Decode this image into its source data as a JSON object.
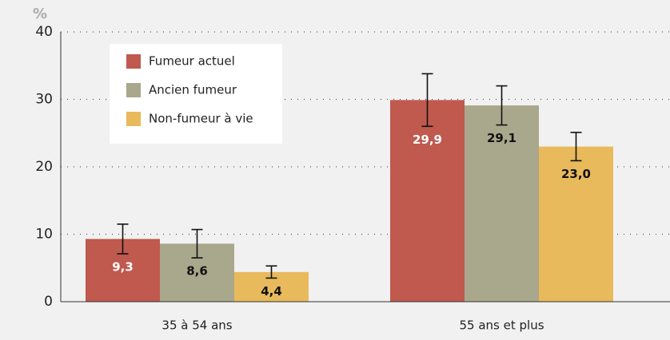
{
  "chart_data": {
    "type": "bar",
    "y_label": "%",
    "categories": [
      "35 à 54 ans",
      "55 ans et plus"
    ],
    "series": [
      {
        "name": "Fumeur actuel",
        "color": "#c0594e",
        "label_color": "#ffffff",
        "values": [
          9.3,
          29.9
        ],
        "value_labels": [
          "9,3",
          "29,9"
        ],
        "errors": [
          2.2,
          3.9
        ]
      },
      {
        "name": "Ancien fumeur",
        "color": "#a9a78c",
        "label_color": "#111111",
        "values": [
          8.6,
          29.1
        ],
        "value_labels": [
          "8,6",
          "29,1"
        ],
        "errors": [
          2.1,
          2.9
        ]
      },
      {
        "name": "Non-fumeur à vie",
        "color": "#e8ba5c",
        "label_color": "#111111",
        "values": [
          4.4,
          23.0
        ],
        "value_labels": [
          "4,4",
          "23,0"
        ],
        "errors": [
          0.9,
          2.1
        ]
      }
    ],
    "ylim": [
      0,
      40
    ],
    "yticks": [
      0,
      10,
      20,
      30,
      40
    ],
    "grid": true,
    "legend": "upper left"
  }
}
